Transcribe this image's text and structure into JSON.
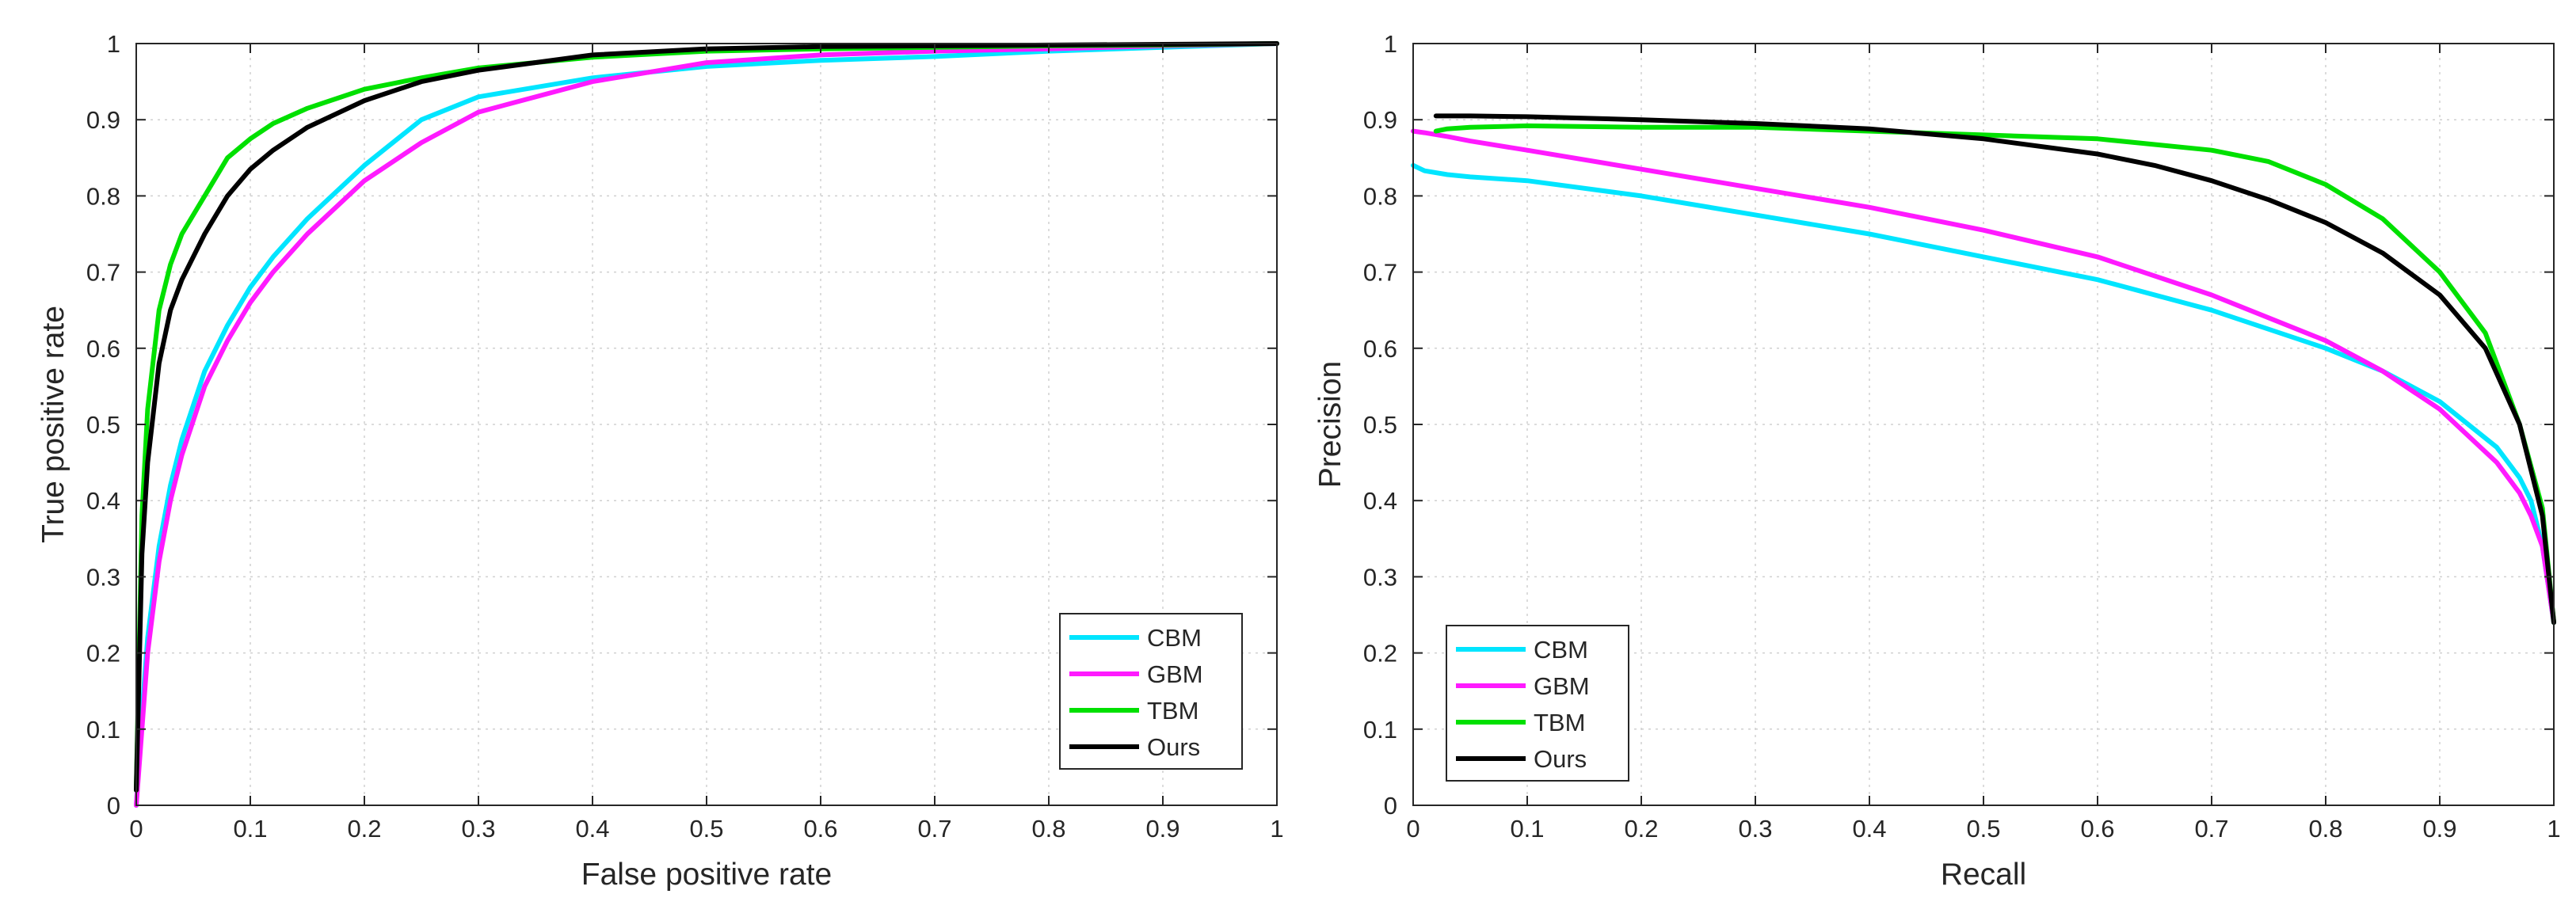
{
  "chart_data": [
    {
      "type": "line",
      "title": "",
      "xlabel": "False positive rate",
      "ylabel": "True positive rate",
      "xlim": [
        0,
        1
      ],
      "ylim": [
        0,
        1
      ],
      "xticks": [
        "0",
        "0.1",
        "0.2",
        "0.3",
        "0.4",
        "0.5",
        "0.6",
        "0.7",
        "0.8",
        "0.9",
        "1"
      ],
      "yticks": [
        "0",
        "0.1",
        "0.2",
        "0.3",
        "0.4",
        "0.5",
        "0.6",
        "0.7",
        "0.8",
        "0.9",
        "1"
      ],
      "grid": true,
      "legend_position": "bottom-right",
      "series": [
        {
          "name": "CBM",
          "color": "#00e5ff",
          "x": [
            0,
            0.005,
            0.01,
            0.02,
            0.03,
            0.04,
            0.06,
            0.08,
            0.1,
            0.12,
            0.15,
            0.2,
            0.25,
            0.3,
            0.4,
            0.5,
            0.6,
            0.7,
            0.8,
            0.9,
            1.0
          ],
          "y": [
            0.0,
            0.12,
            0.22,
            0.34,
            0.42,
            0.48,
            0.57,
            0.63,
            0.68,
            0.72,
            0.77,
            0.84,
            0.9,
            0.93,
            0.955,
            0.97,
            0.978,
            0.983,
            0.99,
            0.995,
            1.0
          ]
        },
        {
          "name": "GBM",
          "color": "#ff1aff",
          "x": [
            0,
            0.005,
            0.01,
            0.02,
            0.03,
            0.04,
            0.06,
            0.08,
            0.1,
            0.12,
            0.15,
            0.2,
            0.25,
            0.3,
            0.4,
            0.5,
            0.6,
            0.7,
            0.8,
            0.9,
            1.0
          ],
          "y": [
            0.0,
            0.1,
            0.2,
            0.32,
            0.4,
            0.46,
            0.55,
            0.61,
            0.66,
            0.7,
            0.75,
            0.82,
            0.87,
            0.91,
            0.95,
            0.975,
            0.985,
            0.99,
            0.993,
            0.997,
            1.0
          ]
        },
        {
          "name": "TBM",
          "color": "#00e000",
          "x": [
            0,
            0.005,
            0.01,
            0.02,
            0.03,
            0.04,
            0.06,
            0.08,
            0.1,
            0.12,
            0.15,
            0.2,
            0.25,
            0.3,
            0.4,
            0.5,
            0.6,
            0.7,
            0.8,
            0.9,
            1.0
          ],
          "y": [
            0.02,
            0.38,
            0.52,
            0.65,
            0.71,
            0.75,
            0.8,
            0.85,
            0.875,
            0.895,
            0.915,
            0.94,
            0.955,
            0.968,
            0.982,
            0.99,
            0.993,
            0.995,
            0.997,
            0.998,
            1.0
          ]
        },
        {
          "name": "Ours",
          "color": "#000000",
          "x": [
            0,
            0.005,
            0.01,
            0.02,
            0.03,
            0.04,
            0.06,
            0.08,
            0.1,
            0.12,
            0.15,
            0.2,
            0.25,
            0.3,
            0.4,
            0.5,
            0.6,
            0.7,
            0.8,
            0.9,
            1.0
          ],
          "y": [
            0.02,
            0.33,
            0.45,
            0.58,
            0.65,
            0.69,
            0.75,
            0.8,
            0.835,
            0.86,
            0.89,
            0.925,
            0.95,
            0.965,
            0.985,
            0.993,
            0.996,
            0.997,
            0.998,
            0.999,
            1.0
          ]
        }
      ]
    },
    {
      "type": "line",
      "title": "",
      "xlabel": "Recall",
      "ylabel": "Precision",
      "xlim": [
        0,
        1
      ],
      "ylim": [
        0,
        1
      ],
      "xticks": [
        "0",
        "0.1",
        "0.2",
        "0.3",
        "0.4",
        "0.5",
        "0.6",
        "0.7",
        "0.8",
        "0.9",
        "1"
      ],
      "yticks": [
        "0",
        "0.1",
        "0.2",
        "0.3",
        "0.4",
        "0.5",
        "0.6",
        "0.7",
        "0.8",
        "0.9",
        "1"
      ],
      "grid": true,
      "legend_position": "bottom-left",
      "series": [
        {
          "name": "CBM",
          "color": "#00e5ff",
          "x": [
            0,
            0.01,
            0.03,
            0.05,
            0.1,
            0.2,
            0.3,
            0.4,
            0.5,
            0.6,
            0.7,
            0.8,
            0.85,
            0.9,
            0.95,
            0.97,
            0.98,
            0.99,
            1.0
          ],
          "y": [
            0.84,
            0.833,
            0.828,
            0.825,
            0.82,
            0.8,
            0.775,
            0.75,
            0.72,
            0.69,
            0.65,
            0.6,
            0.57,
            0.53,
            0.47,
            0.43,
            0.4,
            0.34,
            0.24
          ]
        },
        {
          "name": "GBM",
          "color": "#ff1aff",
          "x": [
            0,
            0.01,
            0.03,
            0.05,
            0.1,
            0.2,
            0.3,
            0.4,
            0.5,
            0.6,
            0.7,
            0.8,
            0.85,
            0.9,
            0.95,
            0.97,
            0.98,
            0.99,
            1.0
          ],
          "y": [
            0.885,
            0.883,
            0.878,
            0.872,
            0.86,
            0.835,
            0.81,
            0.785,
            0.755,
            0.72,
            0.67,
            0.61,
            0.57,
            0.52,
            0.45,
            0.41,
            0.38,
            0.34,
            0.24
          ]
        },
        {
          "name": "TBM",
          "color": "#00e000",
          "x": [
            0.02,
            0.03,
            0.05,
            0.1,
            0.2,
            0.3,
            0.4,
            0.5,
            0.6,
            0.7,
            0.75,
            0.8,
            0.85,
            0.9,
            0.94,
            0.97,
            0.99,
            1.0
          ],
          "y": [
            0.885,
            0.888,
            0.89,
            0.892,
            0.89,
            0.89,
            0.885,
            0.88,
            0.875,
            0.86,
            0.845,
            0.815,
            0.77,
            0.7,
            0.62,
            0.5,
            0.39,
            0.24
          ]
        },
        {
          "name": "Ours",
          "color": "#000000",
          "x": [
            0.02,
            0.05,
            0.1,
            0.2,
            0.3,
            0.4,
            0.5,
            0.6,
            0.65,
            0.7,
            0.75,
            0.8,
            0.85,
            0.9,
            0.94,
            0.97,
            0.99,
            1.0
          ],
          "y": [
            0.905,
            0.905,
            0.904,
            0.9,
            0.895,
            0.888,
            0.875,
            0.855,
            0.84,
            0.82,
            0.795,
            0.765,
            0.725,
            0.67,
            0.6,
            0.5,
            0.38,
            0.24
          ]
        }
      ]
    }
  ]
}
